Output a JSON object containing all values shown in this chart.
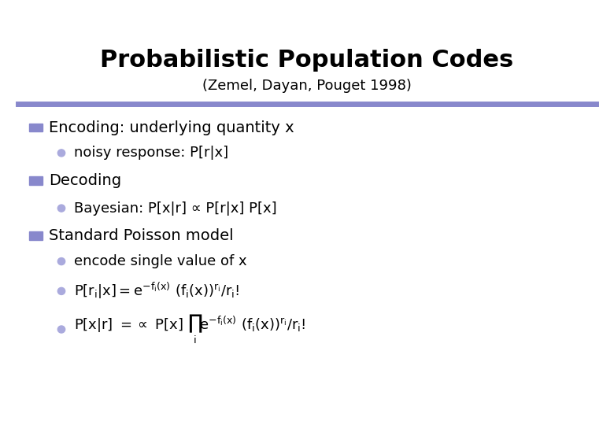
{
  "title": "Probabilistic Population Codes",
  "subtitle": "(Zemel, Dayan, Pouget 1998)",
  "title_fontsize": 22,
  "subtitle_fontsize": 13,
  "bg_color": "#ffffff",
  "title_color": "#000000",
  "divider_color": "#8888cc",
  "square_bullet_color": "#8888cc",
  "circle_bullet_color": "#aaaadd",
  "bullet1_text": "Encoding: underlying quantity x",
  "sub1_text": "noisy response: P[r|x]",
  "bullet2_text": "Decoding",
  "sub2_text": "Bayesian: P[x|r] ∝ P[r|x] P[x]",
  "bullet3_text": "Standard Poisson model",
  "sub3a_text": "encode single value of x",
  "text_fontsize": 14,
  "sub_fontsize": 13,
  "formula_fontsize": 13
}
